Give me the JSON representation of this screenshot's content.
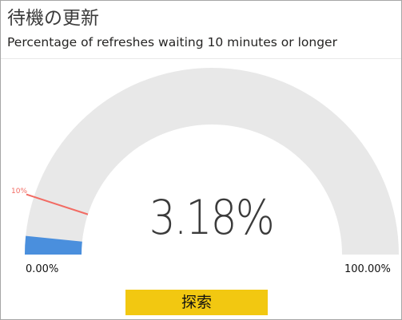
{
  "card": {
    "title": "待機の更新",
    "subtitle": "Percentage of refreshes waiting 10 minutes or longer"
  },
  "gauge": {
    "value_label": "3.18%",
    "value": 3.18,
    "min_label": "0.00%",
    "max_label": "100.00%",
    "min": 0,
    "max": 100,
    "target_label": "10%",
    "target": 10,
    "colors": {
      "track": "#e8e8e8",
      "fill": "#4a8fdd",
      "target": "#f26b63"
    }
  },
  "actions": {
    "explore_label": "探索",
    "explore_color": "#f2c811"
  }
}
